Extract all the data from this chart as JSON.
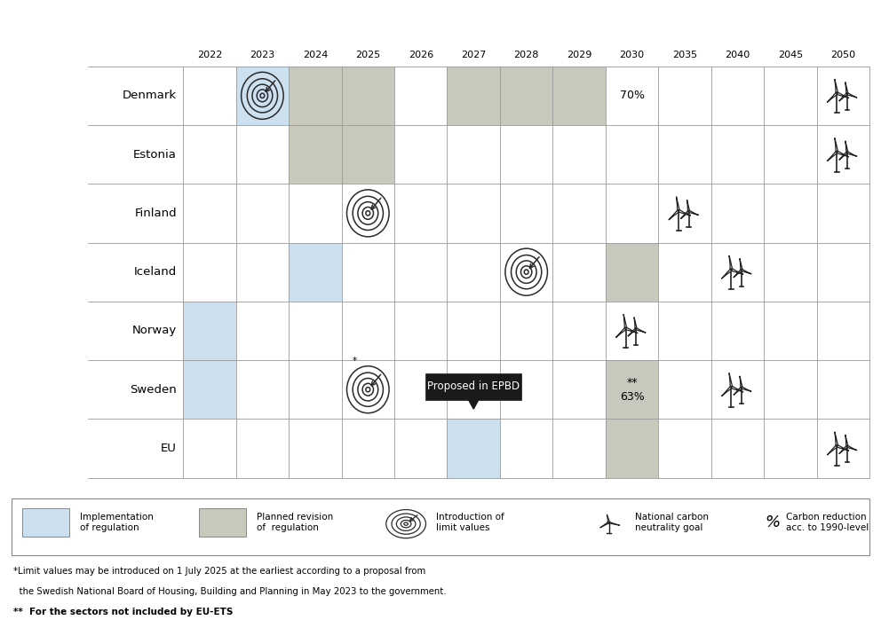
{
  "years": [
    2022,
    2023,
    2024,
    2025,
    2026,
    2027,
    2028,
    2029,
    2030,
    2035,
    2040,
    2045,
    2050
  ],
  "countries": [
    "Denmark",
    "Estonia",
    "Finland",
    "Iceland",
    "Norway",
    "Sweden",
    "EU"
  ],
  "blue_color": "#cce0f0",
  "gray_color": "#c8c8bc",
  "bg_color": "#ffffff",
  "grid_line_color": "#999999",
  "blue_cells": [
    [
      "Denmark",
      2023
    ],
    [
      "Norway",
      2022
    ],
    [
      "Sweden",
      2022
    ],
    [
      "Iceland",
      2024
    ],
    [
      "EU",
      2027
    ]
  ],
  "gray_cells": [
    [
      "Denmark",
      2024
    ],
    [
      "Denmark",
      2025
    ],
    [
      "Denmark",
      2027
    ],
    [
      "Denmark",
      2028
    ],
    [
      "Denmark",
      2029
    ],
    [
      "Estonia",
      2024
    ],
    [
      "Estonia",
      2025
    ],
    [
      "Iceland",
      2030
    ],
    [
      "Sweden",
      2030
    ],
    [
      "EU",
      2030
    ]
  ],
  "target_icons": [
    {
      "country": "Denmark",
      "year": 2023,
      "prefix": ""
    },
    {
      "country": "Finland",
      "year": 2025,
      "prefix": ""
    },
    {
      "country": "Iceland",
      "year": 2028,
      "prefix": ""
    },
    {
      "country": "Sweden",
      "year": 2025,
      "prefix": "*"
    }
  ],
  "wind_icons": [
    {
      "country": "Denmark",
      "year": 2050,
      "n": 2
    },
    {
      "country": "Estonia",
      "year": 2050,
      "n": 2
    },
    {
      "country": "Finland",
      "year": 2035,
      "n": 2
    },
    {
      "country": "Iceland",
      "year": 2040,
      "n": 2
    },
    {
      "country": "Norway",
      "year": 2030,
      "n": 2
    },
    {
      "country": "Sweden",
      "year": 2040,
      "n": 2
    },
    {
      "country": "EU",
      "year": 2050,
      "n": 2
    }
  ],
  "percent_labels": [
    {
      "country": "Denmark",
      "year": 2030,
      "text": "70%"
    },
    {
      "country": "Sweden",
      "year": 2030,
      "text": "**\n63%"
    }
  ],
  "epbd_annotation": {
    "country": "Sweden",
    "year": 2027,
    "text": "Proposed in EPBD"
  },
  "footnote1": "*Limit values may be introduced on 1 July 2025 at the earliest according to a proposal from",
  "footnote1b": "  the Swedish National Board of Housing, Building and Planning in May 2023 to the government.",
  "footnote2": "**  For the sectors not included by EU-ETS"
}
